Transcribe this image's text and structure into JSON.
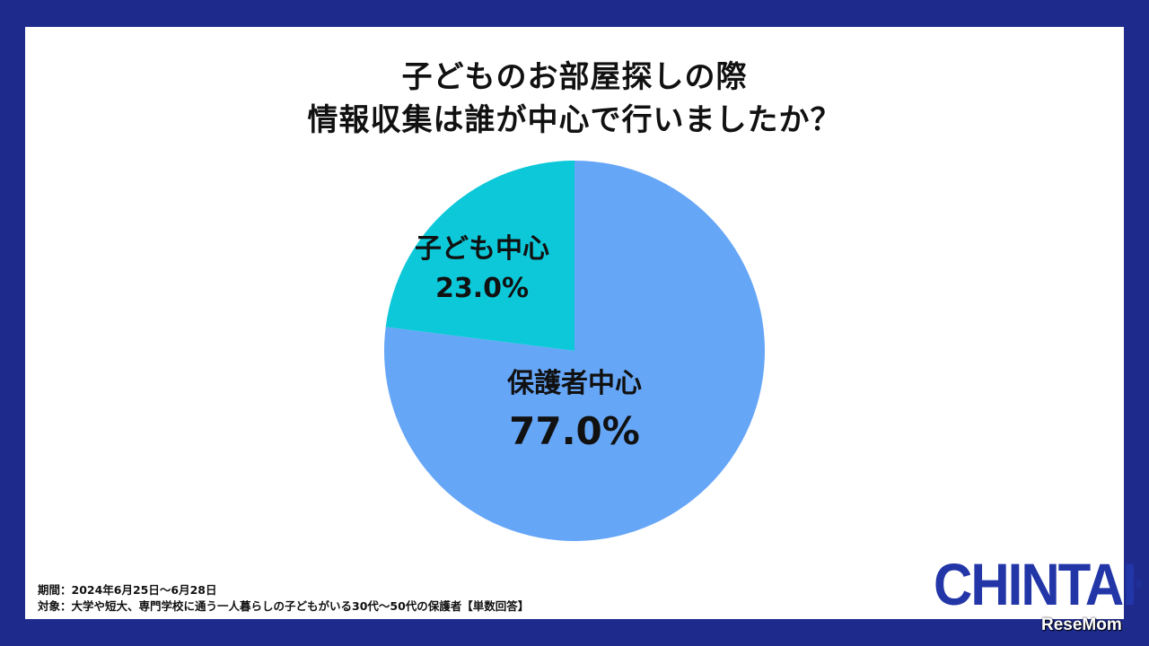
{
  "title": {
    "line1": "子どものお部屋探しの際",
    "line2": "情報収集は誰が中心で行いましたか？"
  },
  "chart_data": {
    "type": "pie",
    "title": "子どものお部屋探しの際 情報収集は誰が中心で行いましたか？",
    "slices": [
      {
        "label": "保護者中心",
        "value": 77.0,
        "display": "77.0%",
        "color": "#66a6f7"
      },
      {
        "label": "子ども中心",
        "value": 23.0,
        "display": "23.0%",
        "color": "#0dc8d9"
      }
    ],
    "start": "12 o'clock",
    "direction": "clockwise"
  },
  "notes": {
    "period": "期間：2024年6月25日〜6月28日",
    "target": "対象：大学や短大、専門学校に通う一人暮らしの子どもがいる30代〜50代の保護者【単数回答】"
  },
  "logo": {
    "text": "CHINTAI",
    "reg": "®"
  },
  "watermark": {
    "text": "ReseMom"
  },
  "colors": {
    "frame": "#1e2b8c",
    "background": "#ffffff",
    "logo": "#2336a8"
  }
}
